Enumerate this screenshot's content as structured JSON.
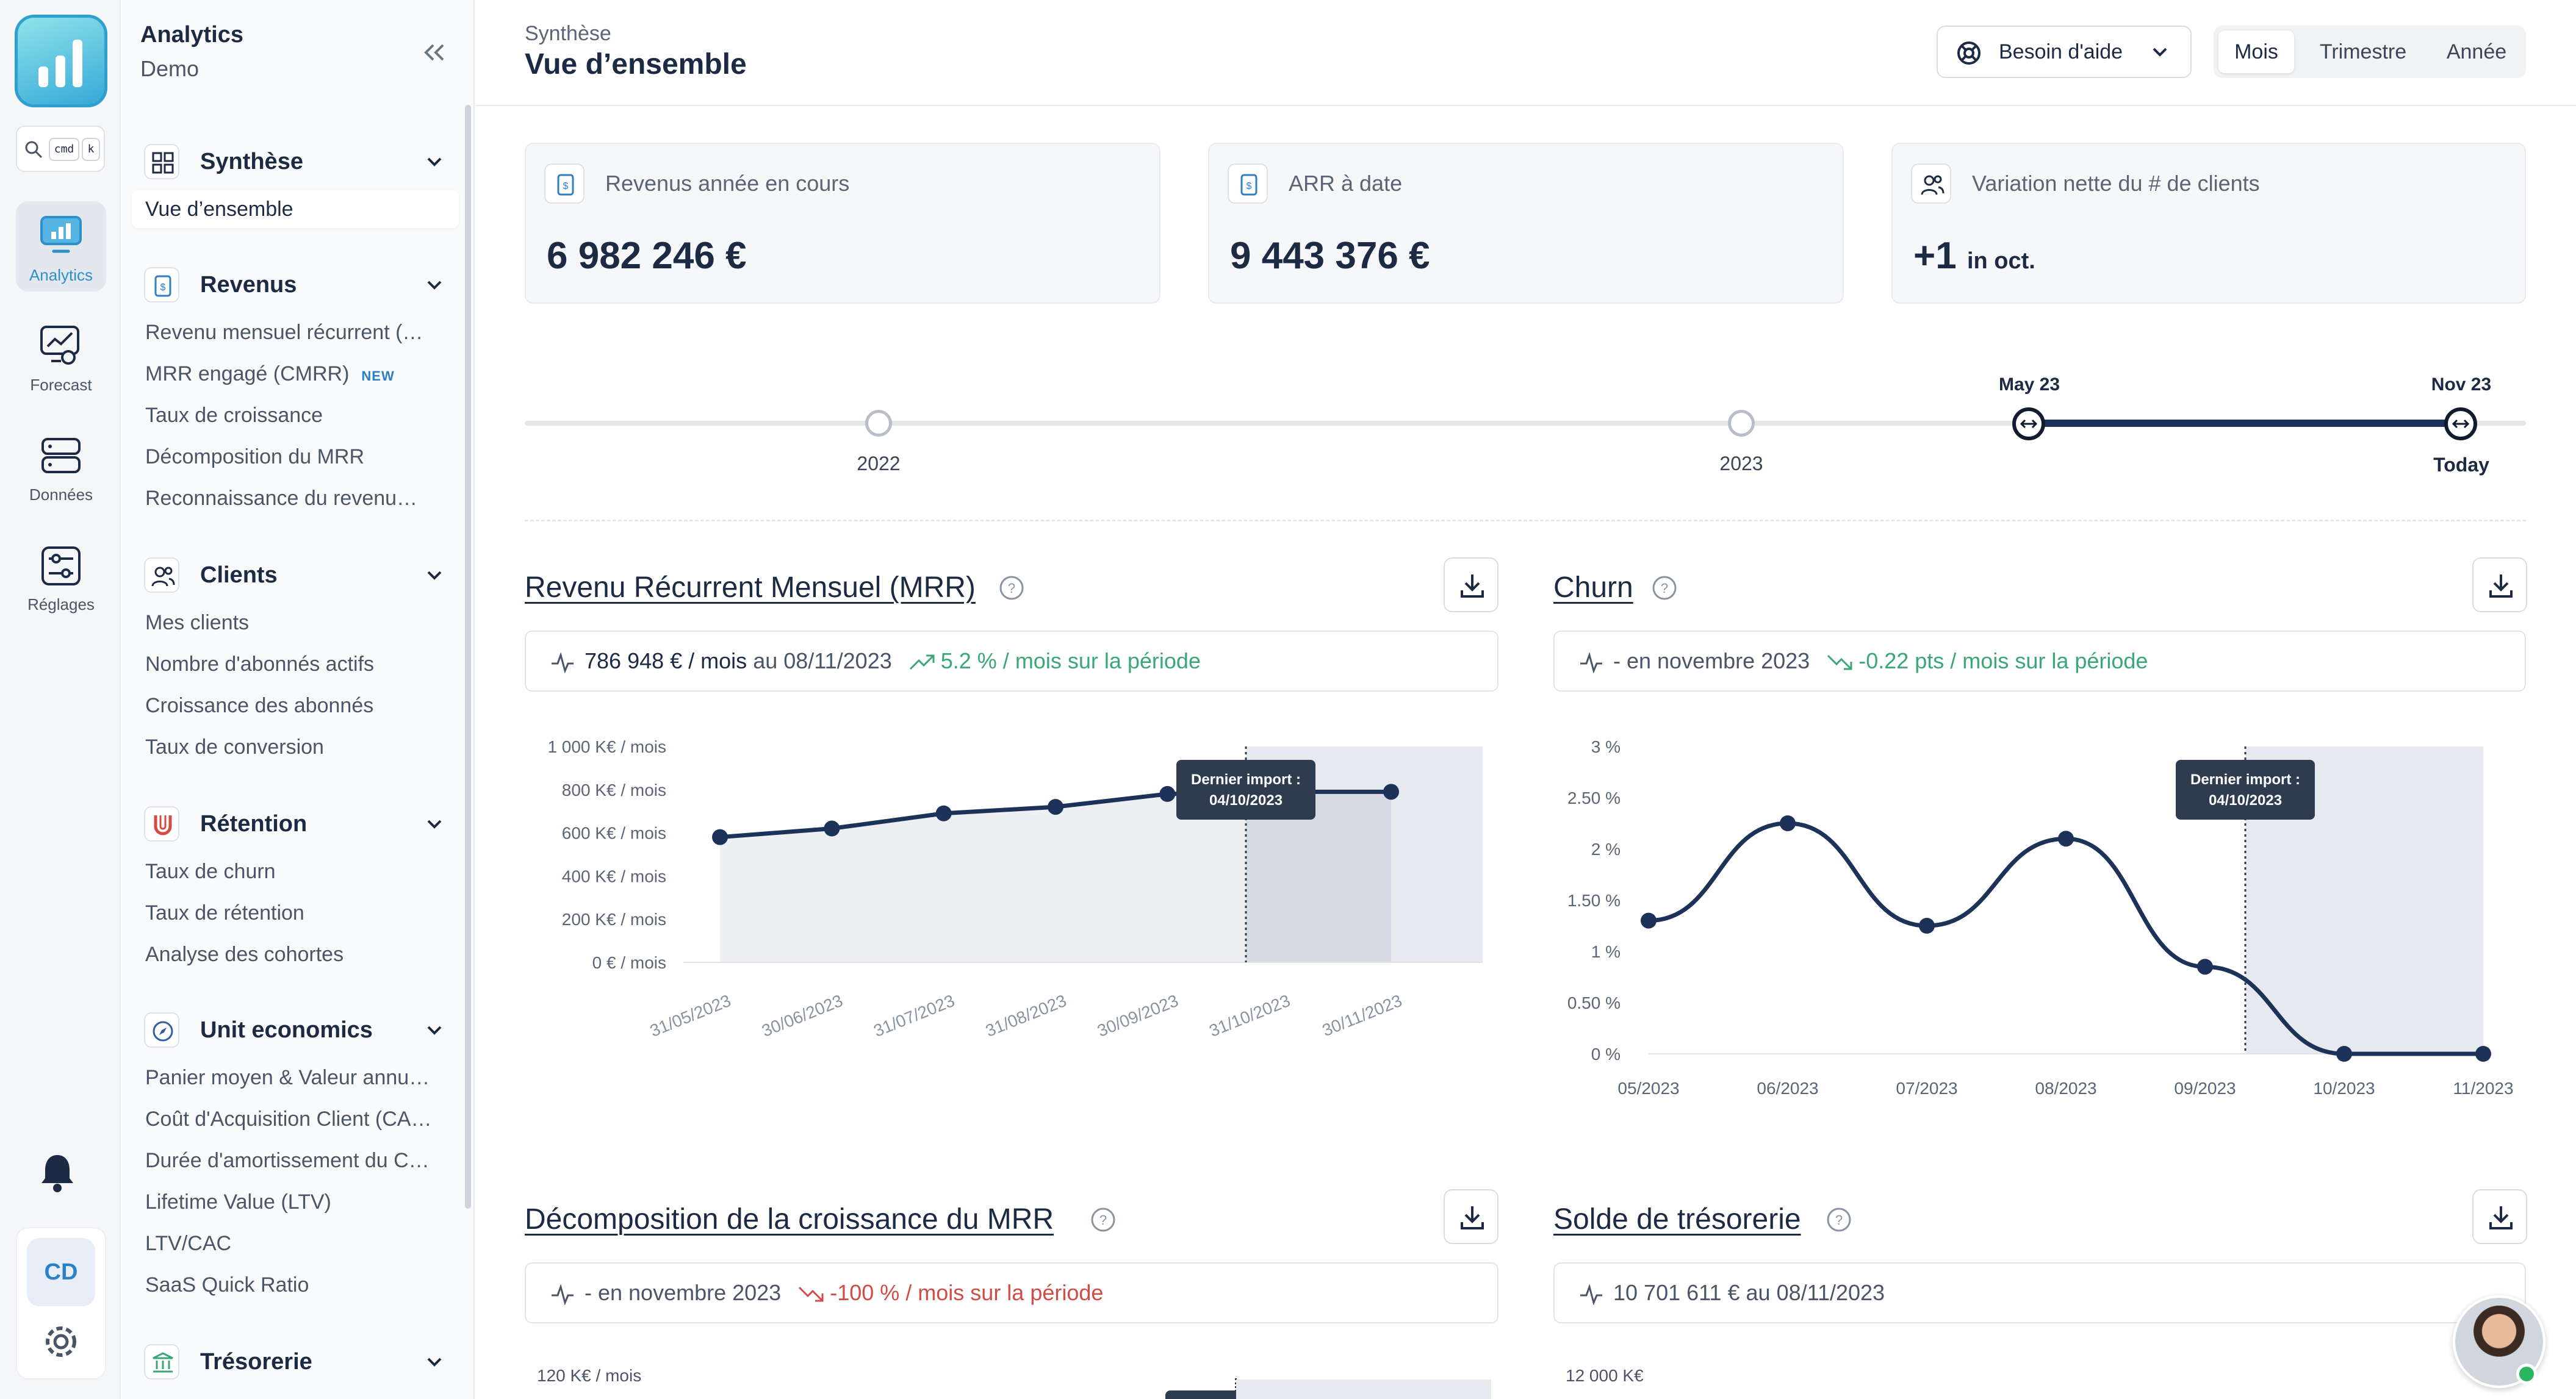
{
  "workspace": {
    "title": "Analytics",
    "subtitle": "Demo"
  },
  "search": {
    "key1": "cmd",
    "key2": "k"
  },
  "rail": [
    {
      "label": "Analytics",
      "icon": "analytics-icon",
      "active": true
    },
    {
      "label": "Forecast",
      "icon": "forecast-icon"
    },
    {
      "label": "Données",
      "icon": "database-icon"
    },
    {
      "label": "Réglages",
      "icon": "sliders-icon"
    }
  ],
  "user": {
    "initials": "CD"
  },
  "sidebar": {
    "sections": [
      {
        "title": "Synthèse",
        "icon": "grid-icon",
        "items": [
          "Vue d’ensemble"
        ]
      },
      {
        "title": "Revenus",
        "icon": "invoice-icon",
        "items": [
          "Revenu mensuel récurrent (…",
          "MRR engagé (CMRR)",
          "Taux de croissance",
          "Décomposition du MRR",
          "Reconnaissance du revenu…"
        ]
      },
      {
        "title": "Clients",
        "icon": "users-icon",
        "items": [
          "Mes clients",
          "Nombre d'abonnés actifs",
          "Croissance des abonnés",
          "Taux de conversion"
        ]
      },
      {
        "title": "Rétention",
        "icon": "magnet-icon",
        "items": [
          "Taux de churn",
          "Taux de rétention",
          "Analyse des cohortes"
        ]
      },
      {
        "title": "Unit economics",
        "icon": "compass-icon",
        "items": [
          "Panier moyen & Valeur annu…",
          "Coût d'Acquisition Client (CA…",
          "Durée d'amortissement du C…",
          "Lifetime Value (LTV)",
          "LTV/CAC",
          "SaaS Quick Ratio"
        ]
      },
      {
        "title": "Trésorerie",
        "icon": "bank-icon",
        "items": []
      }
    ],
    "new_badge": "NEW"
  },
  "header": {
    "breadcrumb": "Synthèse",
    "title": "Vue d’ensemble",
    "help_label": "Besoin d'aide",
    "periods": [
      "Mois",
      "Trimestre",
      "Année"
    ],
    "active_period": "Mois"
  },
  "kpis": [
    {
      "label": "Revenus année en cours",
      "value": "6 982 246 €",
      "suffix": ""
    },
    {
      "label": "ARR à date",
      "value": "9 443 376 €",
      "suffix": ""
    },
    {
      "label": "Variation nette du # de clients",
      "value": "+1",
      "suffix": "in oct."
    }
  ],
  "timeline": {
    "years": [
      "2022",
      "2023"
    ],
    "start_label": "May 23",
    "end_label": "Nov 23",
    "end_sub": "Today"
  },
  "charts": {
    "mrr": {
      "title": "Revenu Récurrent Mensuel (MRR)",
      "stat_value": "786 948 € / mois",
      "stat_date": "au 08/11/2023",
      "stat_trend": "5.2 % / mois sur la période",
      "trend_color": "#3aa776"
    },
    "churn": {
      "title": "Churn",
      "stat_value": "- en novembre 2023",
      "stat_trend": "-0.22 pts / mois sur la période",
      "trend_color": "#3aa776"
    },
    "decomp": {
      "title": "Décomposition de la croissance du MRR",
      "stat_value": "- en novembre 2023",
      "stat_trend": "-100 % / mois sur la période",
      "trend_color": "#d24b46",
      "first_tick": "120 K€ / mois"
    },
    "cash": {
      "title": "Solde de trésorerie",
      "stat_value": "10 701 611 € au 08/11/2023",
      "first_tick": "12 000 K€"
    }
  },
  "chart_data": [
    {
      "type": "line",
      "title": "Revenu Récurrent Mensuel (MRR)",
      "x": [
        "31/05/2023",
        "30/06/2023",
        "31/07/2023",
        "31/08/2023",
        "30/09/2023",
        "31/10/2023",
        "30/11/2023"
      ],
      "values": [
        580,
        620,
        690,
        720,
        780,
        790,
        790
      ],
      "yticks": [
        "0 € / mois",
        "200 K€ / mois",
        "400 K€ / mois",
        "600 K€ / mois",
        "800 K€ / mois",
        "1 000 K€ / mois"
      ],
      "ylim": [
        0,
        1000
      ],
      "annotation": {
        "line1": "Dernier import :",
        "line2": "04/10/2023",
        "x": "04/10/2023"
      },
      "accent": "#1d3259"
    },
    {
      "type": "line",
      "title": "Churn",
      "x": [
        "05/2023",
        "06/2023",
        "07/2023",
        "08/2023",
        "09/2023",
        "10/2023",
        "11/2023"
      ],
      "values": [
        1.3,
        2.25,
        1.25,
        2.1,
        0.85,
        0.0,
        0.0
      ],
      "yticks": [
        "0 %",
        "0.50 %",
        "1 %",
        "1.50 %",
        "2 %",
        "2.50 %",
        "3 %"
      ],
      "ylim": [
        0,
        3
      ],
      "annotation": {
        "line1": "Dernier import :",
        "line2": "04/10/2023"
      },
      "accent": "#1d3259"
    }
  ]
}
